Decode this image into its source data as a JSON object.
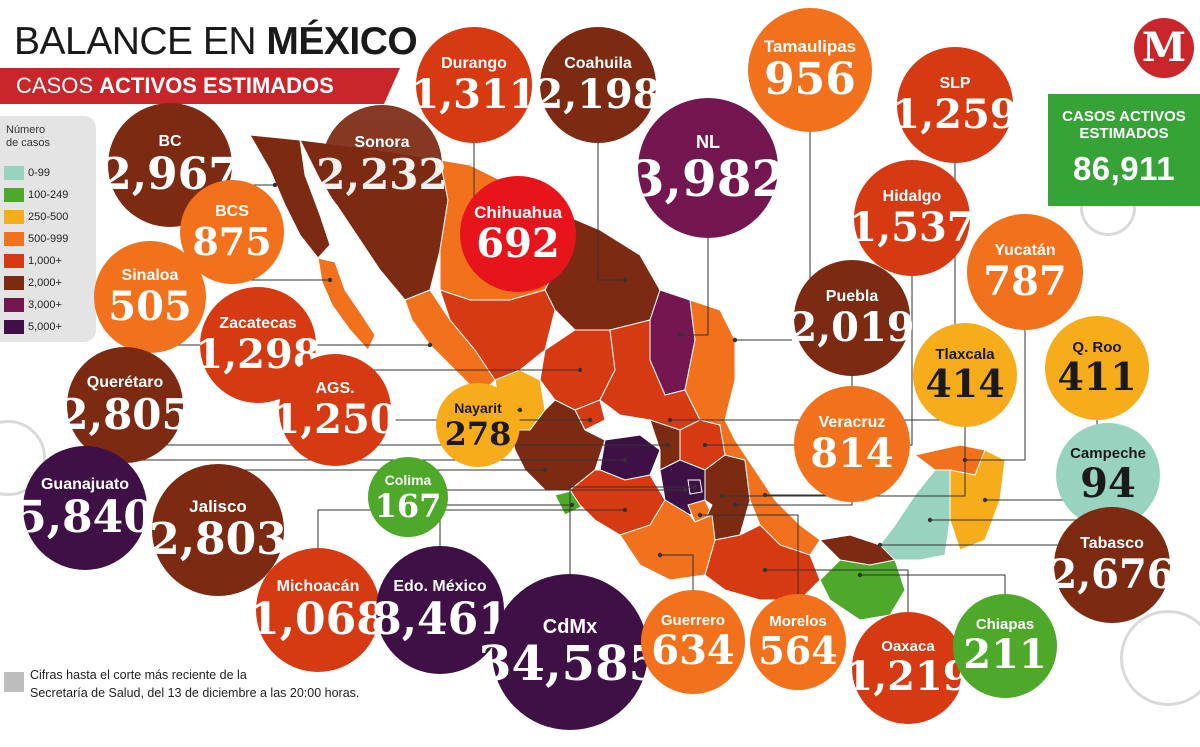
{
  "header": {
    "title_regular": "BALANCE EN ",
    "title_bold": "MÉXICO",
    "subtitle_regular": "CASOS ",
    "subtitle_bold": "ACTIVOS ESTIMADOS"
  },
  "logo": {
    "letter": "M"
  },
  "total": {
    "label": "CASOS ACTIVOS\nESTIMADOS",
    "value": "86,911"
  },
  "legend": {
    "title": "Número\nde casos",
    "items": [
      {
        "label": "0-99",
        "color": "#97d3bf"
      },
      {
        "label": "100-249",
        "color": "#4ea82a"
      },
      {
        "label": "250-500",
        "color": "#f6ac1b"
      },
      {
        "label": "500-999",
        "color": "#f2711c"
      },
      {
        "label": "1,000+",
        "color": "#d63a12"
      },
      {
        "label": "2,000+",
        "color": "#7d2a13"
      },
      {
        "label": "3,000+",
        "color": "#74164f"
      },
      {
        "label": "5,000+",
        "color": "#3f1045"
      }
    ]
  },
  "states": [
    {
      "name": "BC",
      "value": "2,967",
      "color": "#7d2a13"
    },
    {
      "name": "Sonora",
      "value": "2,232",
      "color": "#7d2a13"
    },
    {
      "name": "Durango",
      "value": "1,311",
      "color": "#d63a12"
    },
    {
      "name": "Coahuila",
      "value": "2,198",
      "color": "#7d2a13"
    },
    {
      "name": "Tamaulipas",
      "value": "956",
      "color": "#f2711c"
    },
    {
      "name": "SLP",
      "value": "1,259",
      "color": "#d63a12"
    },
    {
      "name": "NL",
      "value": "3,982",
      "color": "#74164f"
    },
    {
      "name": "BCS",
      "value": "875",
      "color": "#f2711c"
    },
    {
      "name": "Chihuahua",
      "value": "692",
      "color": "#e8141c"
    },
    {
      "name": "Hidalgo",
      "value": "1,537",
      "color": "#d63a12"
    },
    {
      "name": "Yucatán",
      "value": "787",
      "color": "#f2711c"
    },
    {
      "name": "Sinaloa",
      "value": "505",
      "color": "#f2711c"
    },
    {
      "name": "Puebla",
      "value": "2,019",
      "color": "#7d2a13"
    },
    {
      "name": "Zacatecas",
      "value": "1,298",
      "color": "#d63a12"
    },
    {
      "name": "Tlaxcala",
      "value": "414",
      "color": "#f6ac1b"
    },
    {
      "name": "Q. Roo",
      "value": "411",
      "color": "#f6ac1b"
    },
    {
      "name": "Querétaro",
      "value": "2,805",
      "color": "#7d2a13"
    },
    {
      "name": "AGS.",
      "value": "1,250",
      "color": "#d63a12"
    },
    {
      "name": "Nayarit",
      "value": "278",
      "color": "#f6ac1b"
    },
    {
      "name": "Veracruz",
      "value": "814",
      "color": "#f2711c"
    },
    {
      "name": "Campeche",
      "value": "94",
      "color": "#97d3bf"
    },
    {
      "name": "Guanajuato",
      "value": "5,840",
      "color": "#3f1045"
    },
    {
      "name": "Jalisco",
      "value": "2,803",
      "color": "#7d2a13"
    },
    {
      "name": "Colima",
      "value": "167",
      "color": "#4ea82a"
    },
    {
      "name": "Michoacán",
      "value": "1,068",
      "color": "#d63a12"
    },
    {
      "name": "Edo. México",
      "value": "8,461",
      "color": "#3f1045"
    },
    {
      "name": "CdMx",
      "value": "34,585",
      "color": "#3f1045"
    },
    {
      "name": "Guerrero",
      "value": "634",
      "color": "#f2711c"
    },
    {
      "name": "Morelos",
      "value": "564",
      "color": "#f2711c"
    },
    {
      "name": "Oaxaca",
      "value": "1,219",
      "color": "#d63a12"
    },
    {
      "name": "Chiapas",
      "value": "211",
      "color": "#4ea82a"
    },
    {
      "name": "Tabasco",
      "value": "2,676",
      "color": "#7d2a13"
    }
  ],
  "note": "Cifras hasta el corte más reciente de la\nSecretaría de Salud, del 13 de diciembre a las 20:00 horas."
}
